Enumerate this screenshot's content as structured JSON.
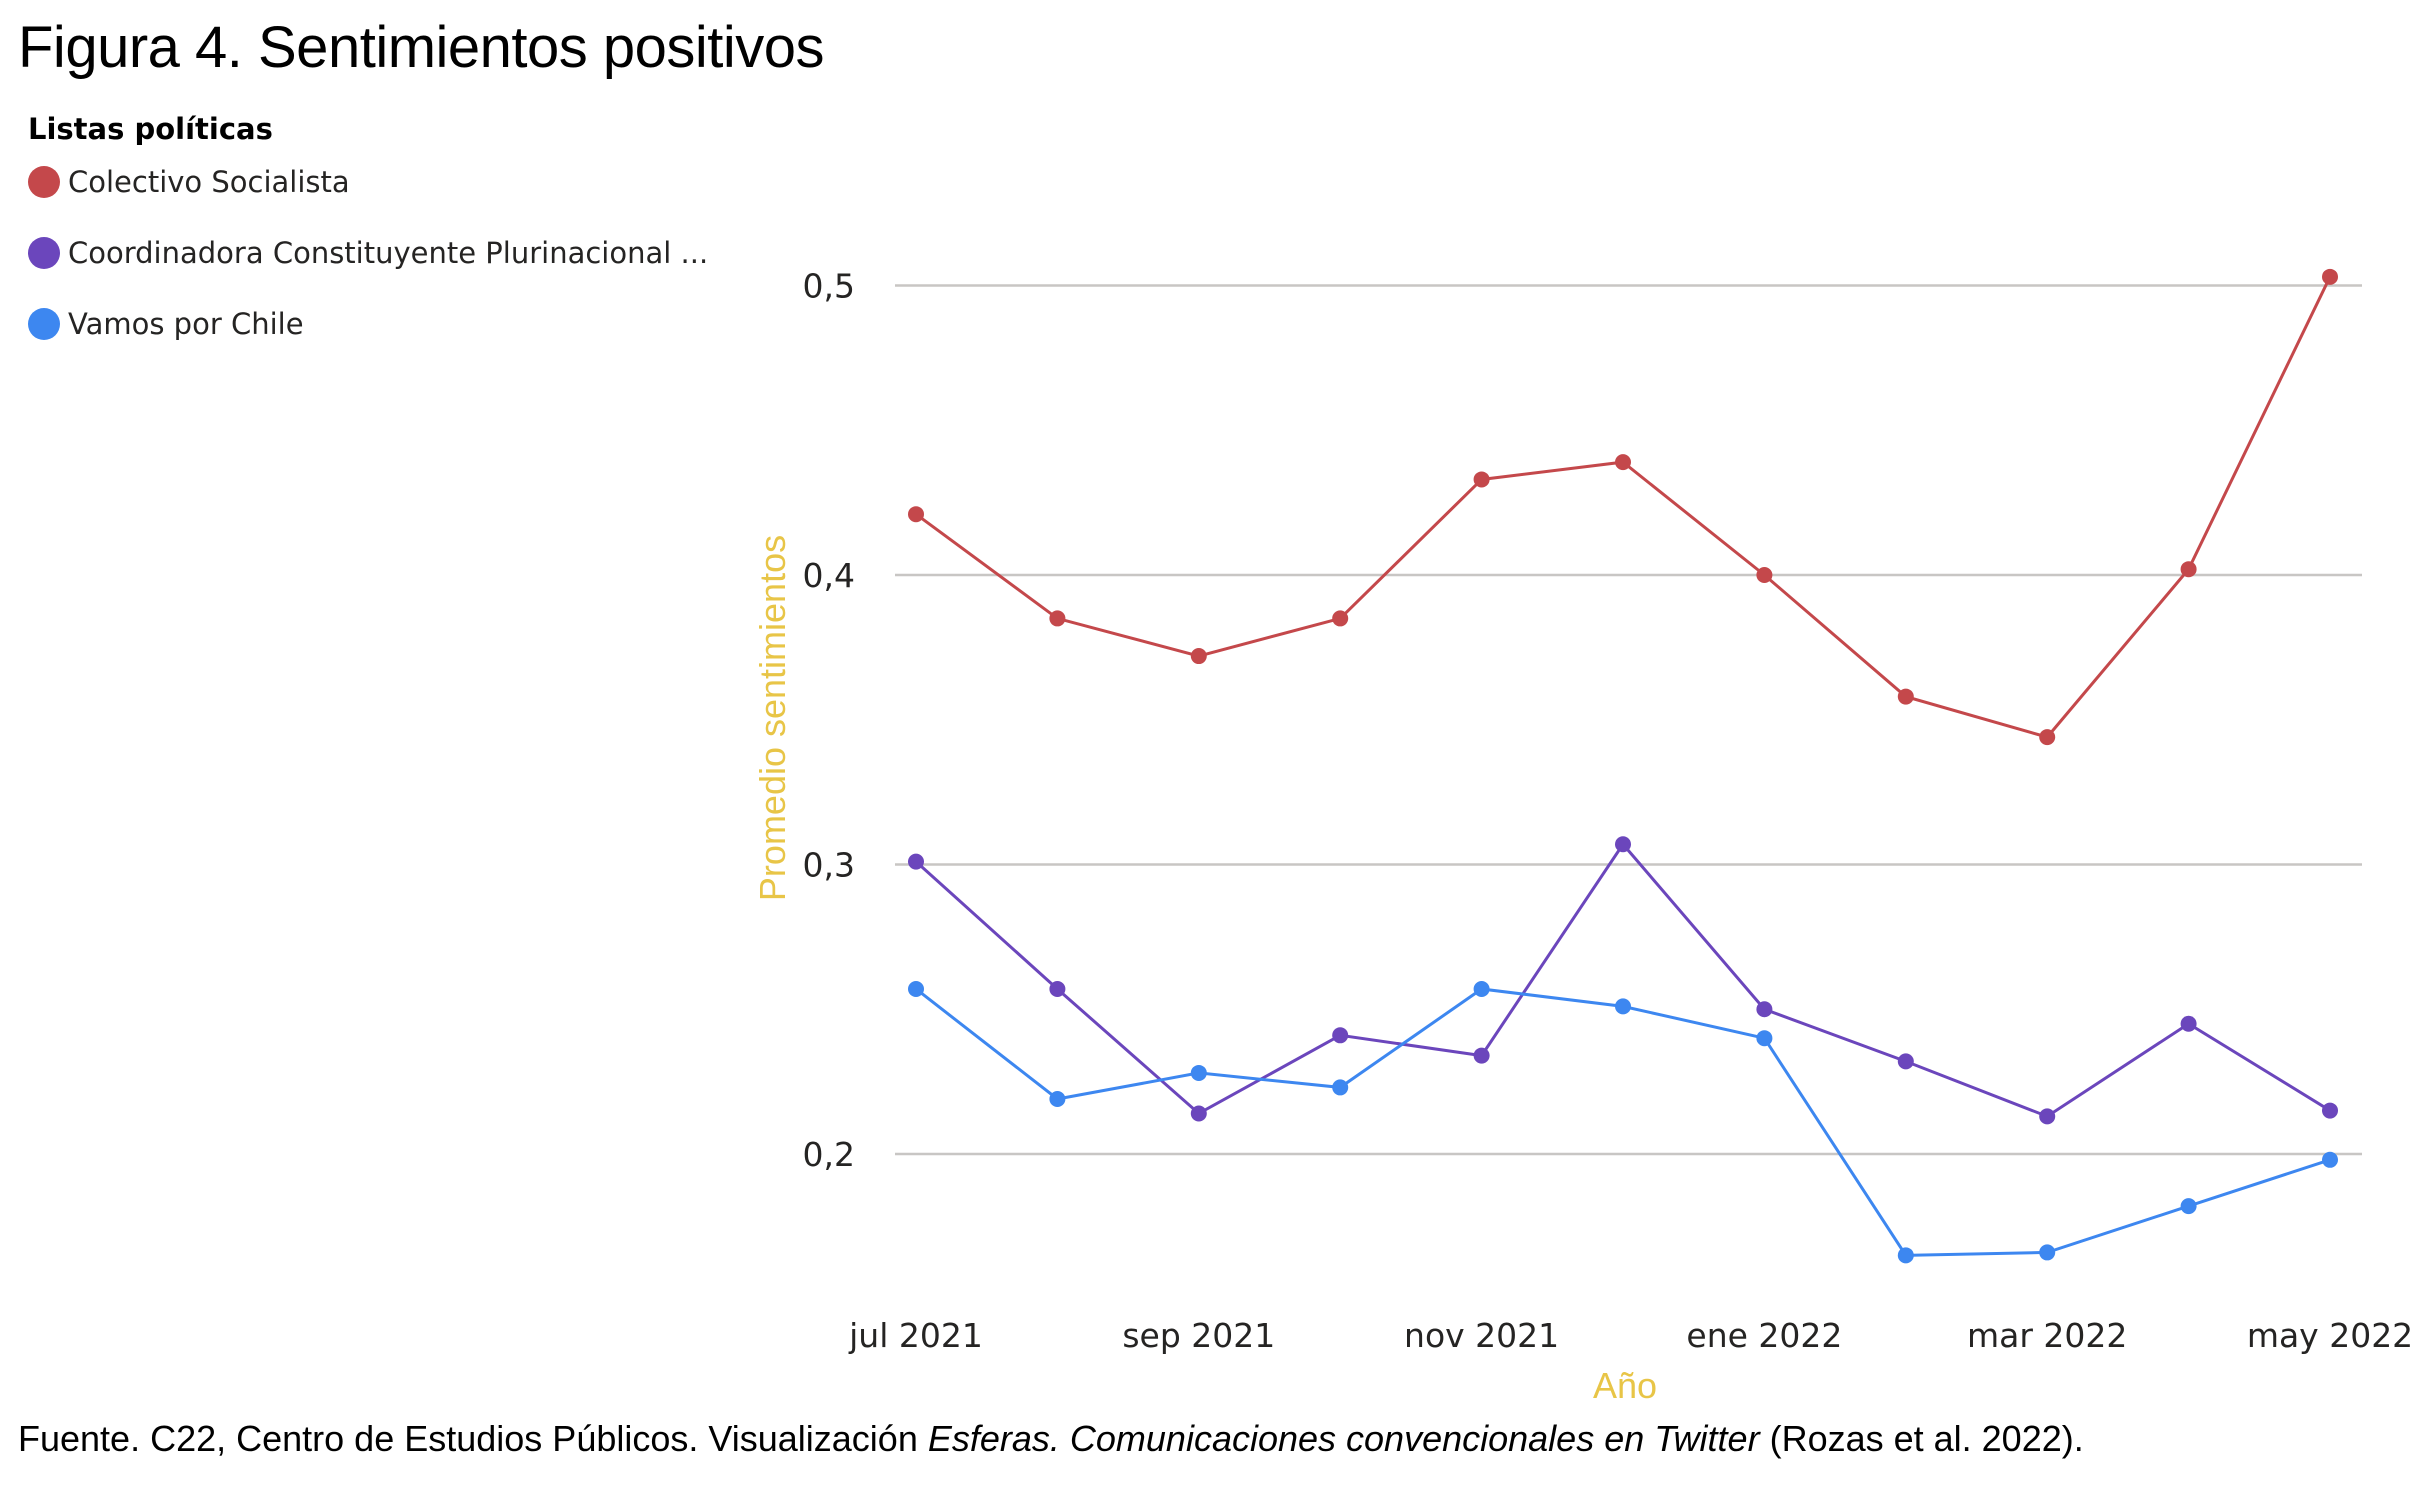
{
  "title": "Figura 4. Sentimientos positivos",
  "footnote": {
    "prefix": "Fuente. C22, Centro de Estudios Públicos. Visualización ",
    "italic": "Esferas. Comunicaciones convencionales en Twitter",
    "suffix": " (Rozas et al. 2022)."
  },
  "legend": {
    "title": "Listas políticas",
    "items": [
      {
        "label": "Colectivo Socialista",
        "color": "#C4484B"
      },
      {
        "label": "Coordinadora Constituyente Plurinacional ...",
        "color": "#6B46BC"
      },
      {
        "label": "Vamos por Chile",
        "color": "#3D87F0"
      }
    ]
  },
  "chart_data": {
    "type": "line",
    "xlabel": "Año",
    "ylabel": "Promedio sentimientos",
    "x": [
      "jul 2021",
      "ago 2021",
      "sep 2021",
      "oct 2021",
      "nov 2021",
      "dic 2021",
      "ene 2022",
      "feb 2022",
      "mar 2022",
      "abr 2022",
      "may 2022"
    ],
    "x_tick_labels": [
      "jul 2021",
      "sep 2021",
      "nov 2021",
      "ene 2022",
      "mar 2022",
      "may 2022"
    ],
    "y_ticks": [
      0.2,
      0.3,
      0.4,
      0.5
    ],
    "y_tick_labels": [
      "0,2",
      "0,3",
      "0,4",
      "0,5"
    ],
    "ylim": [
      0.145,
      0.52
    ],
    "grid": true,
    "legend_position": "top-left",
    "series": [
      {
        "name": "Colectivo Socialista",
        "color": "#C4484B",
        "values": [
          0.421,
          0.385,
          0.372,
          0.385,
          0.433,
          0.439,
          0.4,
          0.358,
          0.344,
          0.402,
          0.503
        ]
      },
      {
        "name": "Coordinadora Constituyente Plurinacional ...",
        "color": "#6B46BC",
        "values": [
          0.301,
          0.257,
          0.214,
          0.241,
          0.234,
          0.307,
          0.25,
          0.232,
          0.213,
          0.245,
          0.215
        ]
      },
      {
        "name": "Vamos por Chile",
        "color": "#3D87F0",
        "values": [
          0.257,
          0.219,
          0.228,
          0.223,
          0.257,
          0.251,
          0.24,
          0.165,
          0.166,
          0.182,
          0.198
        ]
      }
    ],
    "axis_title_color": "#E8C547",
    "gridline_color": "#C8C6C4"
  }
}
